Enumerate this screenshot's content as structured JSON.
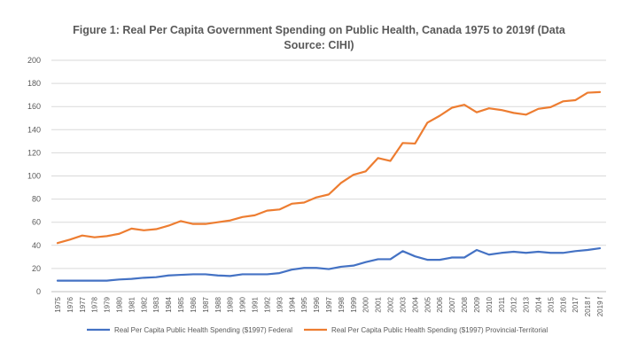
{
  "chart_data": {
    "type": "line",
    "title_line1": "Figure 1: Real Per Capita Government Spending on Public Health, Canada 1975 to 2019f (Data",
    "title_line2": "Source: CIHI)",
    "xlabel": "",
    "ylabel": "",
    "ylim": [
      0,
      200
    ],
    "yticks": [
      0,
      20,
      40,
      60,
      80,
      100,
      120,
      140,
      160,
      180,
      200
    ],
    "grid": true,
    "legend_position": "bottom",
    "categories": [
      "1975",
      "1976",
      "1977",
      "1978",
      "1979",
      "1980",
      "1981",
      "1982",
      "1983",
      "1984",
      "1985",
      "1986",
      "1987",
      "1988",
      "1989",
      "1990",
      "1991",
      "1992",
      "1993",
      "1994",
      "1995",
      "1996",
      "1997",
      "1998",
      "1999",
      "2000",
      "2001",
      "2002",
      "2003",
      "2004",
      "2005",
      "2006",
      "2007",
      "2008",
      "2009",
      "2010",
      "2011",
      "2012",
      "2013",
      "2014",
      "2015",
      "2016",
      "2017",
      "2018 f",
      "2019 f"
    ],
    "series": [
      {
        "name": "Real Per Capita Public Health Spending ($1997) Federal",
        "color": "#4472c4",
        "values": [
          9.5,
          9.5,
          9.5,
          9.5,
          9.5,
          10.5,
          11,
          12,
          12.5,
          14,
          14.5,
          15,
          15,
          14,
          13.5,
          15,
          15,
          15,
          16,
          19,
          20.5,
          20.5,
          19.5,
          21.5,
          22.5,
          25.5,
          28,
          28,
          35,
          30.5,
          27.5,
          27.5,
          29.5,
          29.5,
          36,
          32,
          33.5,
          34.5,
          33.5,
          34.5,
          33.5,
          33.5,
          35,
          36,
          37.5
        ]
      },
      {
        "name": "Real Per Capita Public Health Spending ($1997) Provincial-Territorial",
        "color": "#ed7d31",
        "values": [
          42,
          45,
          48.5,
          47,
          48,
          50,
          54.5,
          53,
          54,
          57,
          61,
          58.5,
          58.5,
          60,
          61.5,
          64.5,
          66,
          70,
          71,
          76,
          77,
          81.5,
          84,
          94,
          101,
          104,
          115.5,
          113,
          128.5,
          128,
          146,
          152,
          159,
          161.5,
          155,
          158.5,
          157,
          154.5,
          153,
          158,
          159.5,
          164.5,
          165.5,
          172,
          172.5
        ]
      }
    ]
  }
}
